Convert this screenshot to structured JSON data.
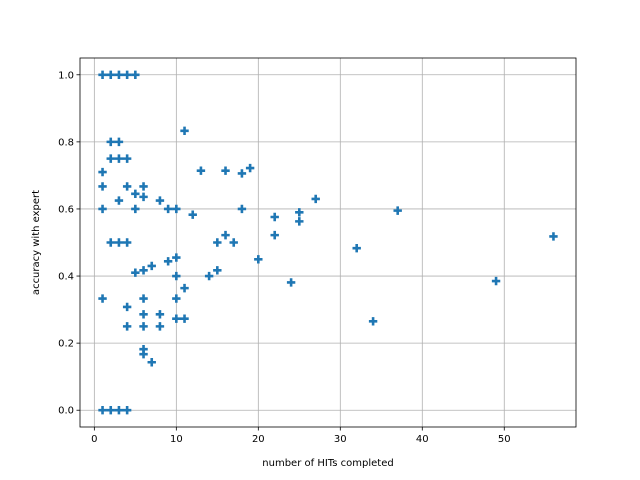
{
  "chart_data": {
    "type": "scatter",
    "xlabel": "number of HITs completed",
    "ylabel": "accuracy with expert",
    "xlim": [
      -1.75,
      58.75
    ],
    "ylim": [
      -0.05,
      1.05
    ],
    "xticks": [
      0,
      10,
      20,
      30,
      40,
      50
    ],
    "yticks": [
      0.0,
      0.2,
      0.4,
      0.6,
      0.8,
      1.0
    ],
    "xtick_labels": [
      "0",
      "10",
      "20",
      "30",
      "40",
      "50"
    ],
    "ytick_labels": [
      "0.0",
      "0.2",
      "0.4",
      "0.6",
      "0.8",
      "1.0"
    ],
    "grid": true,
    "marker": "plus",
    "color": "#1f77b4",
    "points": [
      [
        1,
        1.0
      ],
      [
        2,
        1.0
      ],
      [
        3,
        1.0
      ],
      [
        4,
        1.0
      ],
      [
        5,
        1.0
      ],
      [
        1,
        0.0
      ],
      [
        2,
        0.0
      ],
      [
        3,
        0.0
      ],
      [
        4,
        0.0
      ],
      [
        1,
        0.71
      ],
      [
        1,
        0.667
      ],
      [
        1,
        0.6
      ],
      [
        1,
        0.333
      ],
      [
        2,
        0.8
      ],
      [
        3,
        0.8
      ],
      [
        2,
        0.75
      ],
      [
        3,
        0.75
      ],
      [
        4,
        0.75
      ],
      [
        3,
        0.625
      ],
      [
        2,
        0.5
      ],
      [
        3,
        0.5
      ],
      [
        4,
        0.5
      ],
      [
        4,
        0.667
      ],
      [
        4,
        0.308
      ],
      [
        4,
        0.25
      ],
      [
        5,
        0.645
      ],
      [
        5,
        0.6
      ],
      [
        5,
        0.41
      ],
      [
        6,
        0.667
      ],
      [
        6,
        0.636
      ],
      [
        6,
        0.417
      ],
      [
        6,
        0.333
      ],
      [
        6,
        0.286
      ],
      [
        6,
        0.25
      ],
      [
        6,
        0.182
      ],
      [
        6,
        0.167
      ],
      [
        7,
        0.43
      ],
      [
        7,
        0.143
      ],
      [
        8,
        0.625
      ],
      [
        8,
        0.286
      ],
      [
        8,
        0.25
      ],
      [
        9,
        0.6
      ],
      [
        9,
        0.444
      ],
      [
        10,
        0.6
      ],
      [
        10,
        0.455
      ],
      [
        10,
        0.4
      ],
      [
        10,
        0.333
      ],
      [
        10,
        0.273
      ],
      [
        11,
        0.833
      ],
      [
        11,
        0.364
      ],
      [
        11,
        0.273
      ],
      [
        12,
        0.583
      ],
      [
        13,
        0.714
      ],
      [
        14,
        0.4
      ],
      [
        15,
        0.5
      ],
      [
        15,
        0.417
      ],
      [
        16,
        0.714
      ],
      [
        16,
        0.522
      ],
      [
        17,
        0.5
      ],
      [
        18,
        0.706
      ],
      [
        18,
        0.6
      ],
      [
        19,
        0.722
      ],
      [
        20,
        0.45
      ],
      [
        22,
        0.576
      ],
      [
        22,
        0.522
      ],
      [
        24,
        0.381
      ],
      [
        25,
        0.59
      ],
      [
        25,
        0.563
      ],
      [
        27,
        0.63
      ],
      [
        32,
        0.483
      ],
      [
        34,
        0.265
      ],
      [
        37,
        0.595
      ],
      [
        49,
        0.385
      ],
      [
        56,
        0.518
      ]
    ]
  }
}
